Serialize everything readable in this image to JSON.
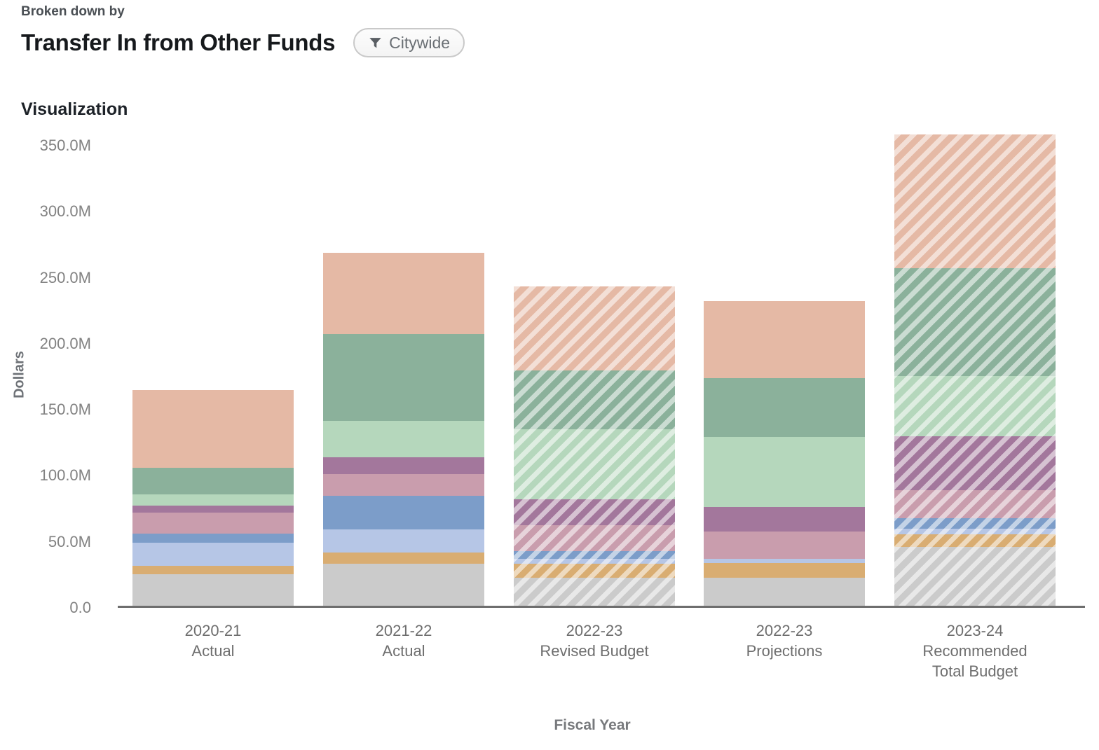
{
  "header": {
    "eyebrow": "Broken down by",
    "title": "Transfer In from Other Funds",
    "filter_badge": {
      "icon": "funnel-icon",
      "label": "Citywide"
    }
  },
  "section": {
    "title": "Visualization"
  },
  "chart_data": {
    "type": "bar",
    "stacked": true,
    "title": "Transfer In from Other Funds",
    "xlabel": "Fiscal Year",
    "ylabel": "Dollars",
    "unit": "millions of dollars",
    "ylim": [
      0,
      350
    ],
    "y_tick_interval_millions": 50,
    "y_tick_labels": [
      "0.0",
      "50.0M",
      "100.0M",
      "150.0M",
      "200.0M",
      "250.0M",
      "300.0M",
      "350.0M"
    ],
    "grid": false,
    "legend": "none",
    "categories": [
      {
        "lines": [
          "2020-21",
          "Actual"
        ],
        "hatched": false,
        "total": 163.3
      },
      {
        "lines": [
          "2021-22",
          "Actual"
        ],
        "hatched": false,
        "total": 267.2
      },
      {
        "lines": [
          "2022-23",
          "Revised Budget"
        ],
        "hatched": true,
        "total": 242.0
      },
      {
        "lines": [
          "2022-23",
          "Projections"
        ],
        "hatched": false,
        "total": 230.5
      },
      {
        "lines": [
          "2023-24",
          "Recommended",
          "Total Budget"
        ],
        "hatched": true,
        "total": 356.8
      }
    ],
    "series": [
      {
        "name": "gray",
        "color": "#cbcbcb",
        "values": [
          24.0,
          31.8,
          21.1,
          21.4,
          44.8
        ]
      },
      {
        "name": "orange",
        "color": "#d9ad72",
        "values": [
          6.2,
          8.5,
          10.5,
          11.1,
          9.3
        ]
      },
      {
        "name": "light-blue",
        "color": "#b6c6e6",
        "values": [
          17.7,
          17.5,
          4.1,
          3.2,
          4.3
        ]
      },
      {
        "name": "medium-blue",
        "color": "#7c9dc9",
        "values": [
          6.7,
          25.4,
          5.7,
          0,
          7.7
        ]
      },
      {
        "name": "pink",
        "color": "#c99dad",
        "values": [
          15.9,
          16.5,
          19.5,
          20.4,
          21.2
        ]
      },
      {
        "name": "purple",
        "color": "#a3779c",
        "values": [
          5.3,
          12.7,
          19.6,
          18.6,
          41.3
        ]
      },
      {
        "name": "light-green",
        "color": "#b5d7bc",
        "values": [
          8.5,
          27.6,
          53.4,
          53.3,
          45.6
        ]
      },
      {
        "name": "medium-green",
        "color": "#8bb19b",
        "values": [
          20.2,
          65.7,
          44.1,
          44.2,
          81.5
        ]
      },
      {
        "name": "peach",
        "color": "#e5b9a5",
        "values": [
          58.8,
          61.5,
          64.0,
          58.3,
          101.1
        ]
      }
    ]
  }
}
